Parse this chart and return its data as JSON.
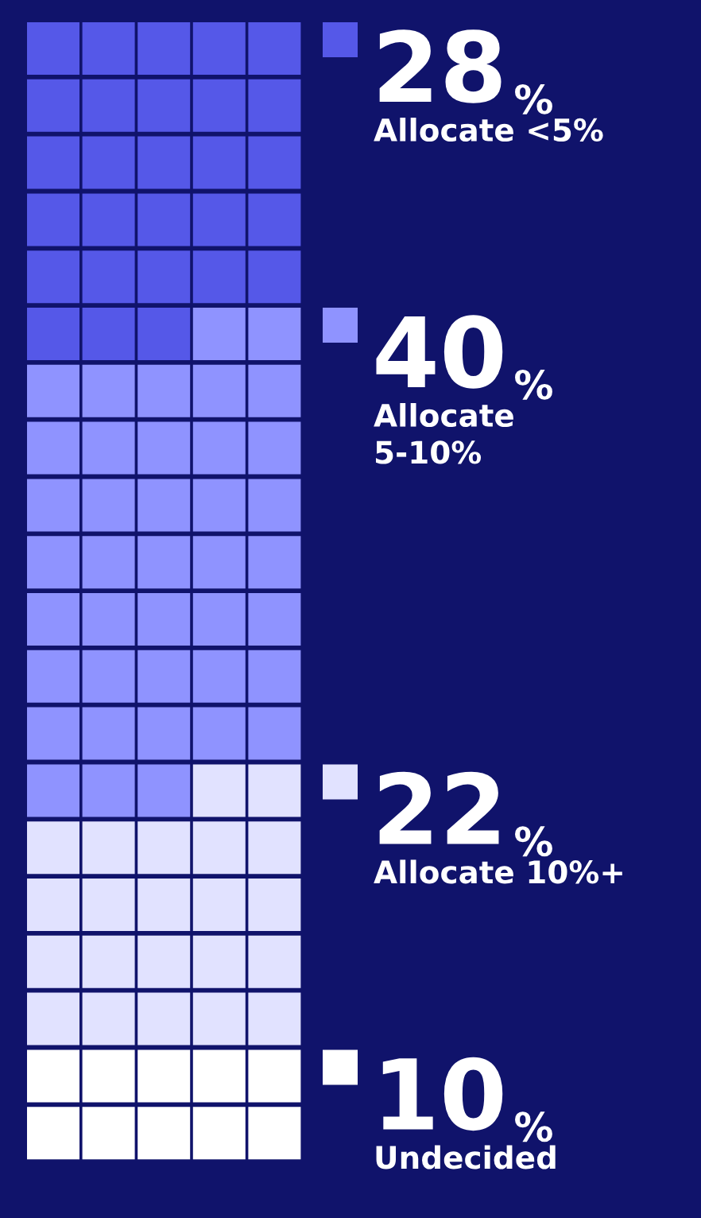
{
  "chart_data": {
    "type": "other",
    "categories": [
      "Allocate <5%",
      "Allocate\n5-10%",
      "Allocate 10%+",
      "Undecided"
    ],
    "values": [
      28,
      40,
      22,
      10
    ],
    "value_labels": [
      "28%",
      "40%",
      "22%",
      "10%"
    ],
    "colors": [
      "#5558e8",
      "#8f93ff",
      "#e1e2ff",
      "#ffffff"
    ]
  }
}
